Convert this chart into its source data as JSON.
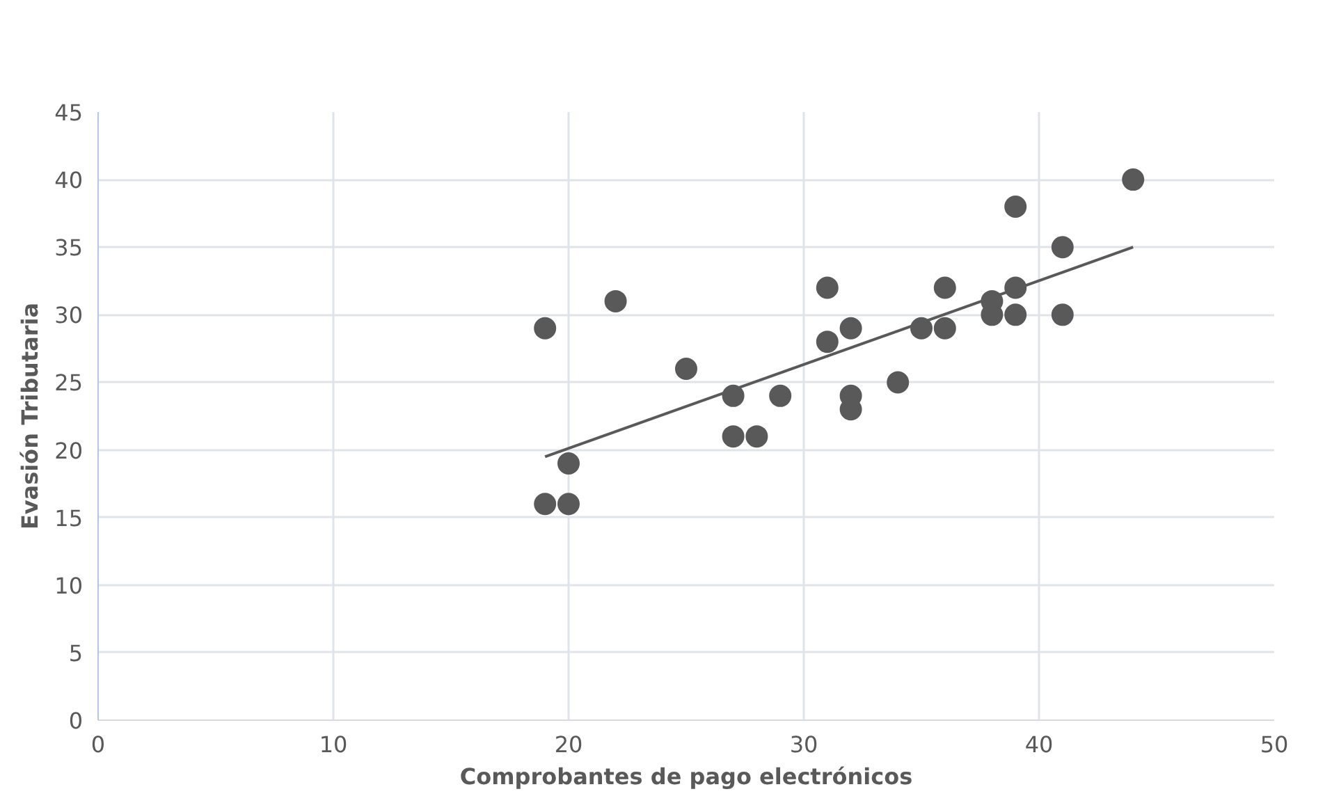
{
  "chart_data": {
    "type": "scatter",
    "xlabel": "Comprobantes de pago electrónicos",
    "ylabel": "Evasión Tributaria",
    "xlim": [
      0,
      50
    ],
    "xticks": [
      0,
      10,
      20,
      30,
      40,
      50
    ],
    "ylim": [
      0,
      45
    ],
    "yticks": [
      0,
      5,
      10,
      15,
      20,
      25,
      30,
      35,
      40,
      45
    ],
    "grid": true,
    "series": [
      {
        "marker": "circle",
        "color": "#595959",
        "x": [
          19,
          19,
          20,
          20,
          22,
          25,
          27,
          27,
          28,
          29,
          31,
          31,
          32,
          32,
          32,
          34,
          35,
          36,
          36,
          38,
          38,
          39,
          39,
          39,
          41,
          41,
          44
        ],
        "values": [
          29,
          16,
          19,
          16,
          31,
          26,
          24,
          21,
          21,
          24,
          32,
          28,
          29,
          24,
          23,
          25,
          29,
          32,
          29,
          31,
          30,
          38,
          32,
          30,
          35,
          30,
          40
        ]
      },
      {
        "type": "line",
        "marker": "none",
        "color": "#595959",
        "x": [
          19,
          44
        ],
        "values": [
          19.5,
          35
        ]
      }
    ]
  }
}
